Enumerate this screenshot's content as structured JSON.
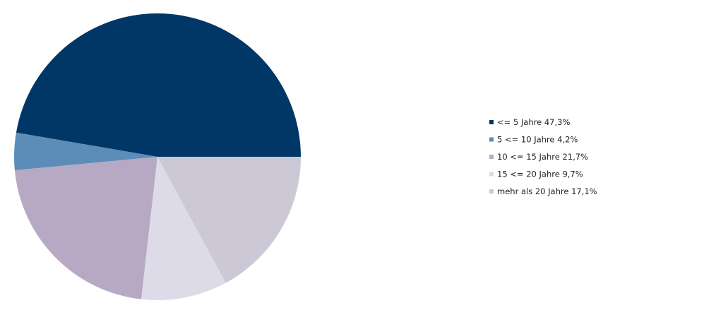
{
  "chart_data": {
    "type": "pie",
    "categories": [
      "<= 5 Jahre",
      "5 <= 10 Jahre",
      "10 <= 15 Jahre",
      "15 <= 20 Jahre",
      "mehr als 20 Jahre"
    ],
    "values": [
      47.3,
      4.2,
      21.7,
      9.7,
      17.1
    ],
    "value_labels": [
      "47,3%",
      "4,2%",
      "21,7%",
      "9,7%",
      "17,1%"
    ],
    "colors": [
      "#003767",
      "#5b8db8",
      "#b7a9c4",
      "#dddbe8",
      "#cdc8d6"
    ],
    "legend": "right"
  }
}
